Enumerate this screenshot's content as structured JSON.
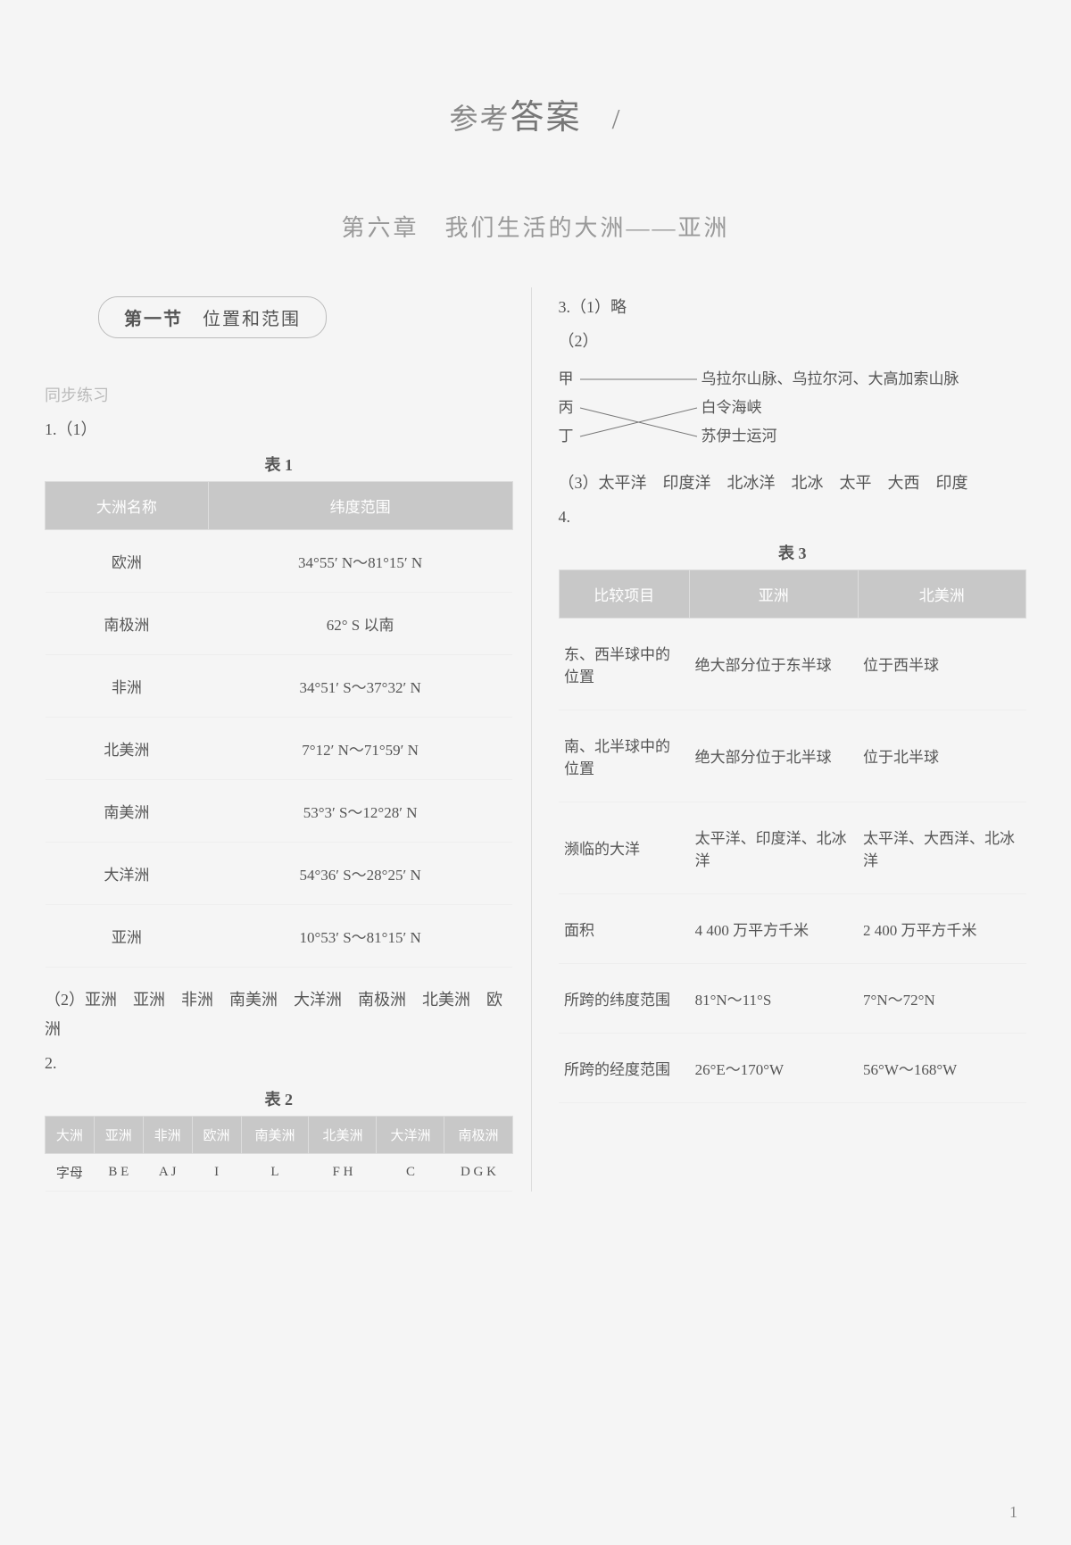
{
  "page_title_prefix": "参考",
  "page_title_main": "答案",
  "chapter_title": "第六章　我们生活的大洲——亚洲",
  "section1": {
    "pill_label_a": "第一节",
    "pill_label_b": "位置和范围",
    "subhead": "同步练习",
    "q1": "1.（1）",
    "table1_label": "表 1",
    "table1": {
      "headers": [
        "大洲名称",
        "纬度范围"
      ],
      "rows": [
        [
          "欧洲",
          "34°55′ N～81°15′ N"
        ],
        [
          "南极洲",
          "62° S 以南"
        ],
        [
          "非洲",
          "34°51′ S～37°32′ N"
        ],
        [
          "北美洲",
          "7°12′ N～71°59′ N"
        ],
        [
          "南美洲",
          "53°3′ S～12°28′ N"
        ],
        [
          "大洋洲",
          "54°36′ S～28°25′ N"
        ],
        [
          "亚洲",
          "10°53′ S～81°15′ N"
        ]
      ]
    },
    "q1_2": "（2）亚洲　亚洲　非洲　南美洲　大洋洲　南极洲　北美洲　欧洲",
    "q2": "2.",
    "table2_label": "表 2",
    "table2": {
      "headers": [
        "大洲",
        "亚洲",
        "非洲",
        "欧洲",
        "南美洲",
        "北美洲",
        "大洋洲",
        "南极洲"
      ],
      "row_label": "字母",
      "row": [
        "B E",
        "A J",
        "I",
        "L",
        "F H",
        "C",
        "D G K"
      ]
    }
  },
  "right": {
    "q3_1": "3.（1）略",
    "q3_2": "（2）",
    "match": {
      "left": [
        "甲",
        "丙",
        "丁"
      ],
      "right": [
        "乌拉尔山脉、乌拉尔河、大高加索山脉",
        "白令海峡",
        "苏伊士运河"
      ]
    },
    "q3_3": "（3）太平洋　印度洋　北冰洋　北冰　太平　大西　印度",
    "q4": "4.",
    "table3_label": "表 3",
    "table3": {
      "headers": [
        "比较项目",
        "亚洲",
        "北美洲"
      ],
      "rows": [
        [
          "东、西半球中的位置",
          "绝大部分位于东半球",
          "位于西半球"
        ],
        [
          "南、北半球中的位置",
          "绝大部分位于北半球",
          "位于北半球"
        ],
        [
          "濒临的大洋",
          "太平洋、印度洋、北冰洋",
          "太平洋、大西洋、北冰洋"
        ],
        [
          "面积",
          "4 400 万平方千米",
          "2 400 万平方千米"
        ],
        [
          "所跨的纬度范围",
          "81°N～11°S",
          "7°N～72°N"
        ],
        [
          "所跨的经度范围",
          "26°E～170°W",
          "56°W～168°W"
        ]
      ]
    }
  },
  "page_number": "1",
  "colors": {
    "header_bg": "#c8c8c8",
    "header_text": "#ffffff",
    "body_text": "#555555",
    "muted": "#bbbbbb",
    "background": "#f5f5f5"
  }
}
